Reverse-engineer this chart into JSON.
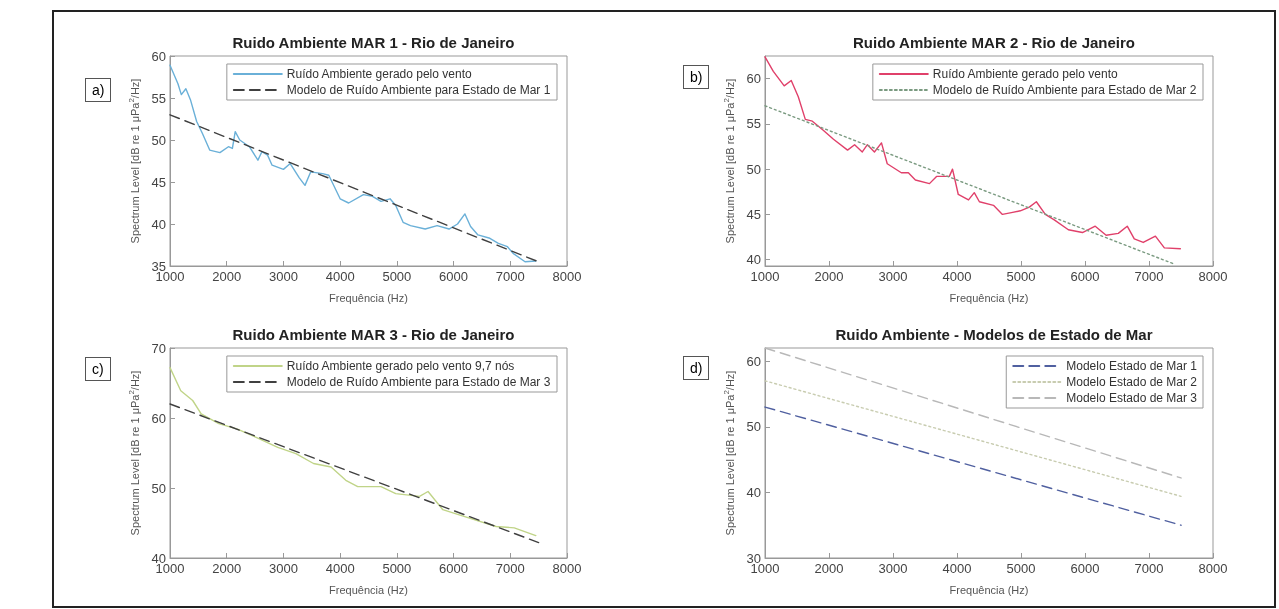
{
  "chart_data": [
    {
      "type": "line",
      "title": "Ruido Ambiente MAR 1 - Rio de Janeiro",
      "xlabel": "Frequência (Hz)",
      "ylabel": "Spectrum Level [dB re 1 μPa$^{2}$/Hz]",
      "annotations": [
        "a)"
      ],
      "xlim": [
        1000,
        8000
      ],
      "xticks": [
        1000,
        2000,
        3000,
        4000,
        5000,
        6000,
        7000,
        8000
      ],
      "ylim": [
        35,
        60
      ],
      "yticks": [
        35,
        40,
        45,
        50,
        55,
        60
      ],
      "grid": false,
      "legend": "top right",
      "marker": "none",
      "series": [
        {
          "name": "Ruído Ambiente gerado pelo vento",
          "color": "#6ab0d8",
          "line_style": "solid",
          "x": [
            1000,
            1140,
            1200,
            1280,
            1360,
            1470,
            1570,
            1700,
            1880,
            2030,
            2100,
            2150,
            2230,
            2400,
            2550,
            2620,
            2720,
            2800,
            3000,
            3120,
            3280,
            3380,
            3480,
            3690,
            3800,
            4000,
            4150,
            4410,
            4570,
            4720,
            4880,
            4980,
            5110,
            5240,
            5500,
            5710,
            5920,
            6070,
            6200,
            6300,
            6430,
            6640,
            6790,
            6950,
            7050,
            7260,
            7450
          ],
          "values": [
            58.9,
            56.7,
            55.4,
            56.1,
            54.8,
            52.2,
            50.8,
            48.8,
            48.5,
            49.2,
            49.0,
            51.0,
            50.0,
            49.2,
            47.6,
            48.6,
            48.2,
            47.0,
            46.5,
            47.2,
            45.5,
            44.6,
            46.2,
            46.0,
            45.8,
            43.0,
            42.5,
            43.5,
            43.3,
            42.7,
            43.0,
            42.2,
            40.2,
            39.8,
            39.4,
            39.8,
            39.4,
            40.0,
            41.2,
            39.7,
            38.7,
            38.3,
            37.7,
            37.3,
            36.5,
            35.5,
            35.6
          ]
        },
        {
          "name": "Modelo de Ruído Ambiente para Estado de Mar 1",
          "color": "#404040",
          "line_style": "dashed",
          "x": [
            1000,
            7500
          ],
          "values": [
            53,
            35.5
          ]
        }
      ]
    },
    {
      "type": "line",
      "title": "Ruido Ambiente MAR 2 - Rio de Janeiro",
      "xlabel": "Frequência (Hz)",
      "ylabel": "Spectrum Level [dB re 1 μPa$^{2}$/Hz]",
      "annotations": [
        "b)"
      ],
      "xlim": [
        1000,
        8000
      ],
      "xticks": [
        1000,
        2000,
        3000,
        4000,
        5000,
        6000,
        7000,
        8000
      ],
      "ylim": [
        39.3,
        62.5
      ],
      "yticks": [
        40,
        45,
        50,
        55,
        60
      ],
      "grid": false,
      "legend": "top right",
      "marker": "none",
      "series": [
        {
          "name": "Ruído Ambiente gerado pelo vento",
          "color": "#e0406a",
          "line_style": "solid",
          "x": [
            1000,
            1130,
            1300,
            1410,
            1520,
            1630,
            1740,
            1910,
            2070,
            2290,
            2400,
            2520,
            2600,
            2710,
            2820,
            2910,
            3130,
            3240,
            3350,
            3570,
            3680,
            3880,
            3930,
            4020,
            4180,
            4270,
            4350,
            4570,
            4710,
            4850,
            4990,
            5130,
            5240,
            5380,
            5520,
            5740,
            5960,
            6160,
            6330,
            6520,
            6660,
            6770,
            6910,
            7100,
            7240,
            7490
          ],
          "values": [
            62.4,
            60.8,
            59.2,
            59.8,
            58.0,
            55.5,
            55.3,
            54.3,
            53.3,
            52.1,
            52.7,
            51.9,
            52.7,
            51.9,
            52.9,
            50.6,
            49.6,
            49.6,
            48.8,
            48.4,
            49.2,
            49.2,
            50.0,
            47.2,
            46.6,
            47.4,
            46.4,
            46.0,
            45.0,
            45.2,
            45.4,
            45.8,
            46.4,
            45.0,
            44.4,
            43.3,
            43.0,
            43.7,
            42.7,
            42.9,
            43.7,
            42.3,
            41.9,
            42.6,
            41.3,
            41.2
          ]
        },
        {
          "name": "Modelo de Ruído Ambiente para Estado de Mar 2",
          "color": "#7a9a80",
          "line_style": "dotted",
          "x": [
            1000,
            7400
          ],
          "values": [
            57,
            39.5
          ]
        }
      ]
    },
    {
      "type": "line",
      "title": "Ruido Ambiente MAR 3 - Rio de Janeiro",
      "xlabel": "Frequência (Hz)",
      "ylabel": "Spectrum Level [dB re 1 μPa$^{2}$/Hz]",
      "annotations": [
        "c)"
      ],
      "xlim": [
        1000,
        8000
      ],
      "xticks": [
        1000,
        2000,
        3000,
        4000,
        5000,
        6000,
        7000,
        8000
      ],
      "ylim": [
        40,
        70
      ],
      "yticks": [
        40,
        50,
        60,
        70
      ],
      "grid": false,
      "legend": "top right",
      "marker": "none",
      "series": [
        {
          "name": "Ruído Ambiente gerado pelo vento 9,7 nós",
          "color": "#c0d488",
          "line_style": "solid",
          "x": [
            1000,
            1190,
            1400,
            1550,
            1860,
            2190,
            2500,
            2900,
            3220,
            3530,
            3840,
            4100,
            4310,
            4720,
            4980,
            5400,
            5550,
            5810,
            6280,
            6750,
            7070,
            7450
          ],
          "values": [
            67.2,
            63.9,
            62.5,
            60.6,
            59.2,
            58.4,
            57.3,
            55.8,
            54.9,
            53.5,
            53.0,
            51.1,
            50.2,
            50.2,
            49.2,
            48.8,
            49.5,
            46.9,
            45.7,
            44.5,
            44.3,
            43.2
          ]
        },
        {
          "name": "Modelo de Ruído Ambiente para Estado de Mar 3",
          "color": "#404040",
          "line_style": "dashed",
          "x": [
            1000,
            7500
          ],
          "values": [
            62,
            42.2
          ]
        }
      ]
    },
    {
      "type": "line",
      "title": "Ruido Ambiente - Modelos de Estado de Mar",
      "xlabel": "Frequência (Hz)",
      "ylabel": "Spectrum Level [dB re 1 μPa$^{2}$/Hz]",
      "annotations": [
        "d)"
      ],
      "xlim": [
        1000,
        8000
      ],
      "xticks": [
        1000,
        2000,
        3000,
        4000,
        5000,
        6000,
        7000,
        8000
      ],
      "ylim": [
        30,
        62
      ],
      "yticks": [
        30,
        40,
        50,
        60
      ],
      "grid": false,
      "legend": "top right",
      "marker": "none",
      "series": [
        {
          "name": "Modelo Estado de Mar 1",
          "color": "#5060a0",
          "line_style": "dashed",
          "x": [
            1000,
            7500
          ],
          "values": [
            53,
            35
          ]
        },
        {
          "name": "Modelo Estado de Mar 2",
          "color": "#c8ccb0",
          "line_style": "dotted",
          "x": [
            1000,
            7500
          ],
          "values": [
            57,
            39.4
          ]
        },
        {
          "name": "Modelo Estado de Mar 3",
          "color": "#b8b8b8",
          "line_style": "dashed",
          "x": [
            1000,
            7500
          ],
          "values": [
            62,
            42.2
          ]
        }
      ]
    }
  ]
}
